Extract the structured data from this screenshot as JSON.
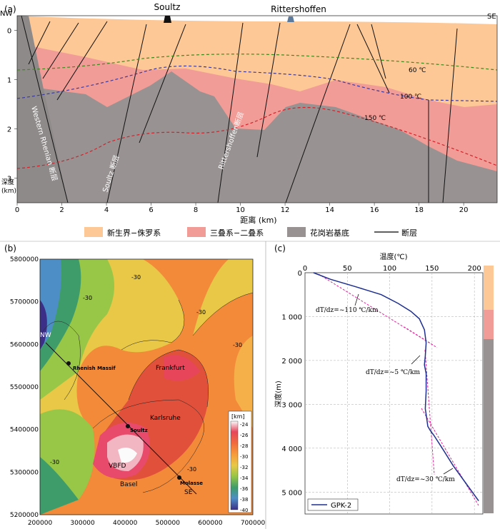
{
  "panel_a": {
    "tag": "(a)",
    "wells": {
      "soultz": "Soultz",
      "rittershoffen": "Rittershoffen"
    },
    "corner_left": "NW",
    "corner_right": "SE",
    "ylabel": "深度\n(km)",
    "xlabel": "距离 (km)",
    "isotherms": [
      "60 ℃",
      "100 ℃",
      "150 ℃"
    ],
    "fault_names": [
      "Western Rhenian 断层",
      "Soultz 断层",
      "Rittershoffen断层"
    ],
    "legend": [
      {
        "label": "新生界−侏罗系",
        "color": "#fdc896"
      },
      {
        "label": "三叠系−二叠系",
        "color": "#f29c97"
      },
      {
        "label": "花岗岩基底",
        "color": "#989292"
      },
      {
        "label": "断层",
        "color": "#000000"
      }
    ],
    "chart_data": {
      "type": "cross-section",
      "x_ticks": [
        0,
        2,
        4,
        6,
        8,
        10,
        12,
        14,
        16,
        18,
        20
      ],
      "y_ticks": [
        0,
        1,
        2,
        3
      ],
      "xlim": [
        0,
        21.5
      ],
      "ylim": [
        3.5,
        -0.3
      ]
    }
  },
  "panel_b": {
    "tag": "(b)",
    "y_ticks": [
      "5800000",
      "5700000",
      "5600000",
      "5500000",
      "5400000",
      "5300000",
      "5200000"
    ],
    "x_ticks": [
      "200000",
      "300000",
      "400000",
      "500000",
      "600000",
      "700000"
    ],
    "places": {
      "rhenish": "Rhenish Massif",
      "frankfurt": "Frankfurt",
      "karlsruhe": "Karlsruhe",
      "soultz": "Soultz",
      "vbfd": "VBFD",
      "basel": "Basel",
      "molasse": "Molasse",
      "nw": "NW",
      "se": "SE"
    },
    "contour_labels": [
      "-30",
      "-30",
      "-30",
      "-30",
      "-30",
      "-30"
    ],
    "colorbar": {
      "title": "[km]",
      "ticks": [
        "-24",
        "-26",
        "-28",
        "-30",
        "-32",
        "-34",
        "-36",
        "-38",
        "-40"
      ],
      "colors": [
        "#fbfbfb",
        "#e7455a",
        "#f06c3b",
        "#f79a3a",
        "#e8c846",
        "#98c646",
        "#3e9c6a",
        "#4e8ec6",
        "#3b2f87"
      ]
    }
  },
  "panel_c": {
    "tag": "(c)",
    "xlabel": "温度(℃)",
    "ylabel": "深度(m)",
    "gradients": [
      "dT/dz=~110 ℃/km",
      "dT/dz=~5 ℃/km",
      "dT/dz=~30 ℃/km"
    ],
    "legend": "GPK-2",
    "chart_data": {
      "type": "line",
      "x_ticks": [
        0,
        50,
        100,
        150,
        200
      ],
      "y_ticks": [
        0,
        1000,
        2000,
        3000,
        4000,
        5000
      ],
      "xlim": [
        0,
        210
      ],
      "ylim": [
        5500,
        0
      ],
      "series": [
        {
          "name": "GPK-2",
          "x": [
            10,
            30,
            60,
            90,
            110,
            125,
            135,
            141,
            143,
            142,
            141,
            143,
            143,
            142,
            144,
            145,
            148,
            152,
            162,
            175,
            190,
            205
          ],
          "y": [
            0,
            150,
            320,
            500,
            700,
            880,
            1050,
            1300,
            1600,
            1900,
            2100,
            2300,
            2700,
            3100,
            3350,
            3500,
            3600,
            3700,
            4000,
            4400,
            4800,
            5200
          ]
        }
      ]
    }
  }
}
